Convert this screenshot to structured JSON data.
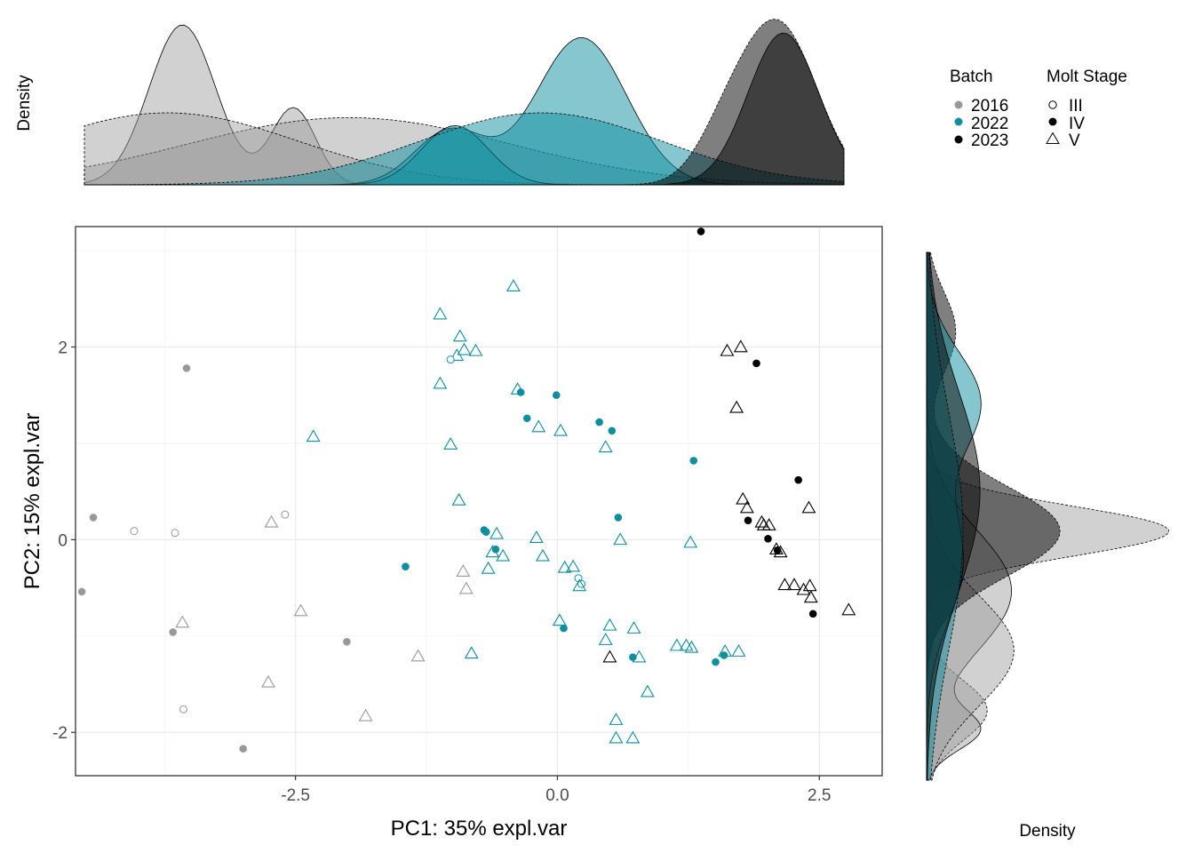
{
  "chart_data": {
    "type": "scatter",
    "xlabel": "PC1: 35% expl.var",
    "ylabel": "PC2: 15% expl.var",
    "top_density_label": "Density",
    "right_density_label": "Density",
    "xlim": [
      -4.6,
      3.1
    ],
    "ylim": [
      -2.45,
      3.25
    ],
    "xticks": [
      -2.5,
      0.0,
      2.5
    ],
    "xtick_labels": [
      "-2.5",
      "0.0",
      "2.5"
    ],
    "yticks": [
      -2,
      0,
      2
    ],
    "ytick_labels": [
      "-2",
      "0",
      "2"
    ],
    "grid": true,
    "legend": {
      "placement": "top-right",
      "color_title": "Batch",
      "shape_title": "Molt Stage",
      "batches": [
        {
          "name": "2016",
          "color": "#999999"
        },
        {
          "name": "2022",
          "color": "#0e8fa0"
        },
        {
          "name": "2023",
          "color": "#000000"
        }
      ],
      "stages": [
        {
          "name": "III",
          "shape": "open-circle"
        },
        {
          "name": "IV",
          "shape": "filled-circle"
        },
        {
          "name": "V",
          "shape": "open-triangle"
        }
      ]
    },
    "points": [
      {
        "x": -4.43,
        "y": 0.23,
        "batch": "2016",
        "stage": "IV"
      },
      {
        "x": -4.54,
        "y": -0.54,
        "batch": "2016",
        "stage": "IV"
      },
      {
        "x": -3.54,
        "y": 1.78,
        "batch": "2016",
        "stage": "IV"
      },
      {
        "x": -3.67,
        "y": -0.96,
        "batch": "2016",
        "stage": "IV"
      },
      {
        "x": -2.01,
        "y": -1.06,
        "batch": "2016",
        "stage": "IV"
      },
      {
        "x": -3.0,
        "y": -2.17,
        "batch": "2016",
        "stage": "IV"
      },
      {
        "x": -4.04,
        "y": 0.09,
        "batch": "2016",
        "stage": "III"
      },
      {
        "x": -3.65,
        "y": 0.07,
        "batch": "2016",
        "stage": "III"
      },
      {
        "x": -2.6,
        "y": 0.26,
        "batch": "2016",
        "stage": "III"
      },
      {
        "x": -3.57,
        "y": -1.76,
        "batch": "2016",
        "stage": "III"
      },
      {
        "x": -2.33,
        "y": 1.07,
        "batch": "2022",
        "stage": "V"
      },
      {
        "x": -2.73,
        "y": 0.18,
        "batch": "2016",
        "stage": "V"
      },
      {
        "x": -3.58,
        "y": -0.86,
        "batch": "2016",
        "stage": "V"
      },
      {
        "x": -2.45,
        "y": -0.74,
        "batch": "2016",
        "stage": "V"
      },
      {
        "x": -2.76,
        "y": -1.48,
        "batch": "2016",
        "stage": "V"
      },
      {
        "x": -1.83,
        "y": -1.83,
        "batch": "2016",
        "stage": "V"
      },
      {
        "x": -1.33,
        "y": -1.21,
        "batch": "2016",
        "stage": "V"
      },
      {
        "x": -0.9,
        "y": -0.33,
        "batch": "2016",
        "stage": "V"
      },
      {
        "x": -0.87,
        "y": -0.51,
        "batch": "2016",
        "stage": "V"
      },
      {
        "x": -0.42,
        "y": 2.63,
        "batch": "2022",
        "stage": "V"
      },
      {
        "x": -1.12,
        "y": 2.34,
        "batch": "2022",
        "stage": "V"
      },
      {
        "x": -0.93,
        "y": 2.11,
        "batch": "2022",
        "stage": "V"
      },
      {
        "x": -0.89,
        "y": 1.97,
        "batch": "2022",
        "stage": "V"
      },
      {
        "x": -0.78,
        "y": 1.96,
        "batch": "2022",
        "stage": "V"
      },
      {
        "x": -0.96,
        "y": 1.91,
        "batch": "2022",
        "stage": "V"
      },
      {
        "x": -1.02,
        "y": 1.87,
        "batch": "2022",
        "stage": "III"
      },
      {
        "x": -1.12,
        "y": 1.62,
        "batch": "2022",
        "stage": "V"
      },
      {
        "x": -0.38,
        "y": 1.56,
        "batch": "2022",
        "stage": "V"
      },
      {
        "x": -0.35,
        "y": 1.53,
        "batch": "2022",
        "stage": "IV"
      },
      {
        "x": -0.01,
        "y": 1.5,
        "batch": "2022",
        "stage": "IV"
      },
      {
        "x": -0.29,
        "y": 1.26,
        "batch": "2022",
        "stage": "IV"
      },
      {
        "x": -0.18,
        "y": 1.17,
        "batch": "2022",
        "stage": "V"
      },
      {
        "x": 0.03,
        "y": 1.13,
        "batch": "2022",
        "stage": "V"
      },
      {
        "x": 0.4,
        "y": 1.22,
        "batch": "2022",
        "stage": "IV"
      },
      {
        "x": 0.52,
        "y": 1.13,
        "batch": "2022",
        "stage": "IV"
      },
      {
        "x": -1.02,
        "y": 0.99,
        "batch": "2022",
        "stage": "V"
      },
      {
        "x": 0.46,
        "y": 0.96,
        "batch": "2022",
        "stage": "V"
      },
      {
        "x": 1.3,
        "y": 0.82,
        "batch": "2022",
        "stage": "IV"
      },
      {
        "x": -0.94,
        "y": 0.41,
        "batch": "2022",
        "stage": "V"
      },
      {
        "x": 0.58,
        "y": 0.23,
        "batch": "2022",
        "stage": "IV"
      },
      {
        "x": -0.7,
        "y": 0.1,
        "batch": "2022",
        "stage": "IV"
      },
      {
        "x": -0.68,
        "y": 0.08,
        "batch": "2022",
        "stage": "IV"
      },
      {
        "x": -0.58,
        "y": 0.06,
        "batch": "2022",
        "stage": "V"
      },
      {
        "x": -0.2,
        "y": 0.02,
        "batch": "2022",
        "stage": "V"
      },
      {
        "x": 0.6,
        "y": 0.0,
        "batch": "2022",
        "stage": "V"
      },
      {
        "x": 1.27,
        "y": -0.03,
        "batch": "2022",
        "stage": "V"
      },
      {
        "x": -0.59,
        "y": -0.1,
        "batch": "2022",
        "stage": "IV"
      },
      {
        "x": -0.62,
        "y": -0.13,
        "batch": "2022",
        "stage": "V"
      },
      {
        "x": -0.52,
        "y": -0.17,
        "batch": "2022",
        "stage": "V"
      },
      {
        "x": -0.14,
        "y": -0.17,
        "batch": "2022",
        "stage": "V"
      },
      {
        "x": -1.45,
        "y": -0.28,
        "batch": "2022",
        "stage": "IV"
      },
      {
        "x": -0.66,
        "y": -0.3,
        "batch": "2022",
        "stage": "V"
      },
      {
        "x": 0.07,
        "y": -0.29,
        "batch": "2022",
        "stage": "V"
      },
      {
        "x": 0.15,
        "y": -0.28,
        "batch": "2022",
        "stage": "V"
      },
      {
        "x": 0.2,
        "y": -0.4,
        "batch": "2022",
        "stage": "III"
      },
      {
        "x": 0.23,
        "y": -0.46,
        "batch": "2022",
        "stage": "III"
      },
      {
        "x": 0.21,
        "y": -0.48,
        "batch": "2022",
        "stage": "V"
      },
      {
        "x": 0.02,
        "y": -0.84,
        "batch": "2022",
        "stage": "V"
      },
      {
        "x": 0.06,
        "y": -0.92,
        "batch": "2022",
        "stage": "IV"
      },
      {
        "x": 0.5,
        "y": -0.89,
        "batch": "2022",
        "stage": "V"
      },
      {
        "x": 0.73,
        "y": -0.92,
        "batch": "2022",
        "stage": "V"
      },
      {
        "x": 0.46,
        "y": -1.04,
        "batch": "2022",
        "stage": "V"
      },
      {
        "x": 1.14,
        "y": -1.1,
        "batch": "2022",
        "stage": "V"
      },
      {
        "x": 1.23,
        "y": -1.1,
        "batch": "2022",
        "stage": "V"
      },
      {
        "x": 1.28,
        "y": -1.12,
        "batch": "2022",
        "stage": "V"
      },
      {
        "x": -0.82,
        "y": -1.18,
        "batch": "2022",
        "stage": "V"
      },
      {
        "x": 1.6,
        "y": -1.16,
        "batch": "2022",
        "stage": "V"
      },
      {
        "x": 1.73,
        "y": -1.16,
        "batch": "2022",
        "stage": "V"
      },
      {
        "x": 1.59,
        "y": -1.2,
        "batch": "2022",
        "stage": "IV"
      },
      {
        "x": 0.72,
        "y": -1.22,
        "batch": "2022",
        "stage": "IV"
      },
      {
        "x": 0.78,
        "y": -1.22,
        "batch": "2022",
        "stage": "V"
      },
      {
        "x": 1.51,
        "y": -1.27,
        "batch": "2022",
        "stage": "IV"
      },
      {
        "x": 0.86,
        "y": -1.58,
        "batch": "2022",
        "stage": "V"
      },
      {
        "x": 0.56,
        "y": -1.87,
        "batch": "2022",
        "stage": "V"
      },
      {
        "x": 0.56,
        "y": -2.06,
        "batch": "2022",
        "stage": "V"
      },
      {
        "x": 0.72,
        "y": -2.06,
        "batch": "2022",
        "stage": "V"
      },
      {
        "x": 1.37,
        "y": 3.2,
        "batch": "2023",
        "stage": "IV"
      },
      {
        "x": 1.62,
        "y": 1.96,
        "batch": "2023",
        "stage": "V"
      },
      {
        "x": 1.75,
        "y": 2.0,
        "batch": "2023",
        "stage": "V"
      },
      {
        "x": 1.9,
        "y": 1.83,
        "batch": "2023",
        "stage": "IV"
      },
      {
        "x": 1.71,
        "y": 1.37,
        "batch": "2023",
        "stage": "V"
      },
      {
        "x": 2.3,
        "y": 0.62,
        "batch": "2023",
        "stage": "IV"
      },
      {
        "x": 1.77,
        "y": 0.42,
        "batch": "2023",
        "stage": "V"
      },
      {
        "x": 1.81,
        "y": 0.33,
        "batch": "2023",
        "stage": "V"
      },
      {
        "x": 2.4,
        "y": 0.33,
        "batch": "2023",
        "stage": "V"
      },
      {
        "x": 1.82,
        "y": 0.2,
        "batch": "2023",
        "stage": "IV"
      },
      {
        "x": 1.95,
        "y": 0.18,
        "batch": "2023",
        "stage": "V"
      },
      {
        "x": 2.02,
        "y": 0.15,
        "batch": "2023",
        "stage": "V"
      },
      {
        "x": 1.97,
        "y": 0.15,
        "batch": "2023",
        "stage": "V"
      },
      {
        "x": 2.01,
        "y": 0.01,
        "batch": "2023",
        "stage": "IV"
      },
      {
        "x": 2.09,
        "y": -0.1,
        "batch": "2023",
        "stage": "V"
      },
      {
        "x": 2.13,
        "y": -0.13,
        "batch": "2023",
        "stage": "V"
      },
      {
        "x": 2.1,
        "y": -0.11,
        "batch": "2023",
        "stage": "IV"
      },
      {
        "x": 2.17,
        "y": -0.47,
        "batch": "2023",
        "stage": "V"
      },
      {
        "x": 2.26,
        "y": -0.47,
        "batch": "2023",
        "stage": "V"
      },
      {
        "x": 2.35,
        "y": -0.52,
        "batch": "2023",
        "stage": "V"
      },
      {
        "x": 2.41,
        "y": -0.48,
        "batch": "2023",
        "stage": "V"
      },
      {
        "x": 2.42,
        "y": -0.6,
        "batch": "2023",
        "stage": "V"
      },
      {
        "x": 2.44,
        "y": -0.77,
        "batch": "2023",
        "stage": "IV"
      },
      {
        "x": 2.78,
        "y": -0.73,
        "batch": "2023",
        "stage": "V"
      },
      {
        "x": 0.5,
        "y": -1.22,
        "batch": "2023",
        "stage": "V"
      }
    ],
    "top_density": [
      {
        "batch": "2016",
        "stage": "IV",
        "color": "#999999",
        "fill_opacity": 0.45,
        "dash": false,
        "peaks": [
          [
            -3.85,
            1.0,
            0.33
          ],
          [
            -2.75,
            0.48,
            0.22
          ]
        ],
        "range": [
          -4.82,
          2.7
        ]
      },
      {
        "batch": "2016",
        "stage": "V",
        "color": "#999999",
        "fill_opacity": 0.45,
        "dash": true,
        "peaks": [
          [
            -2.2,
            0.42,
            1.6
          ]
        ],
        "range": [
          -4.82,
          2.7
        ]
      },
      {
        "batch": "2016",
        "stage": "III",
        "color": "#999999",
        "fill_opacity": 0.45,
        "dash": true,
        "peaks": [
          [
            -4.0,
            0.45,
            1.3
          ]
        ],
        "range": [
          -4.82,
          2.7
        ]
      },
      {
        "batch": "2022",
        "stage": "IV",
        "color": "#0e8fa0",
        "fill_opacity": 0.5,
        "dash": false,
        "peaks": [
          [
            0.1,
            0.92,
            0.45
          ],
          [
            -1.2,
            0.34,
            0.35
          ]
        ],
        "range": [
          -4.82,
          2.7
        ]
      },
      {
        "batch": "2022",
        "stage": "III",
        "color": "#0e8fa0",
        "fill_opacity": 0.5,
        "dash": false,
        "peaks": [
          [
            -1.15,
            0.37,
            0.33
          ]
        ],
        "range": [
          -4.82,
          2.7
        ]
      },
      {
        "batch": "2022",
        "stage": "V",
        "color": "#0e8fa0",
        "fill_opacity": 0.5,
        "dash": true,
        "peaks": [
          [
            -0.3,
            0.45,
            1.2
          ]
        ],
        "range": [
          -4.82,
          2.7
        ]
      },
      {
        "batch": "2023",
        "stage": "V",
        "color": "#000000",
        "fill_opacity": 0.5,
        "dash": true,
        "peaks": [
          [
            2.05,
            1.0,
            0.38
          ],
          [
            1.5,
            0.22,
            0.28
          ]
        ],
        "range": [
          -4.82,
          2.7
        ]
      },
      {
        "batch": "2023",
        "stage": "IV",
        "color": "#000000",
        "fill_opacity": 0.5,
        "dash": false,
        "peaks": [
          [
            2.1,
            0.95,
            0.35
          ]
        ],
        "range": [
          -4.82,
          2.7
        ]
      }
    ],
    "right_density": [
      {
        "batch": "2016",
        "stage": "III",
        "color": "#999999",
        "fill_opacity": 0.45,
        "dash": true,
        "peaks": [
          [
            0.0,
            1.0,
            0.25
          ],
          [
            -1.8,
            0.25,
            0.3
          ]
        ],
        "range": [
          -2.5,
          2.8
        ]
      },
      {
        "batch": "2016",
        "stage": "IV",
        "color": "#999999",
        "fill_opacity": 0.45,
        "dash": false,
        "peaks": [
          [
            -0.6,
            0.35,
            0.6
          ],
          [
            -2.0,
            0.2,
            0.2
          ]
        ],
        "range": [
          -2.5,
          2.8
        ]
      },
      {
        "batch": "2016",
        "stage": "V",
        "color": "#999999",
        "fill_opacity": 0.45,
        "dash": true,
        "peaks": [
          [
            -1.2,
            0.36,
            0.55
          ]
        ],
        "range": [
          -2.5,
          2.8
        ]
      },
      {
        "batch": "2023",
        "stage": "V",
        "color": "#000000",
        "fill_opacity": 0.5,
        "dash": true,
        "peaks": [
          [
            0.0,
            0.55,
            0.45
          ],
          [
            2.0,
            0.12,
            0.4
          ]
        ],
        "range": [
          -2.5,
          2.8
        ]
      },
      {
        "batch": "2022",
        "stage": "IV",
        "color": "#0e8fa0",
        "fill_opacity": 0.5,
        "dash": false,
        "peaks": [
          [
            1.3,
            0.22,
            0.5
          ],
          [
            -0.3,
            0.15,
            0.6
          ]
        ],
        "range": [
          -2.5,
          2.8
        ]
      },
      {
        "batch": "2022",
        "stage": "V",
        "color": "#0e8fa0",
        "fill_opacity": 0.5,
        "dash": true,
        "peaks": [
          [
            0.0,
            0.15,
            1.2
          ]
        ],
        "range": [
          -2.5,
          2.8
        ]
      },
      {
        "batch": "2023",
        "stage": "IV",
        "color": "#000000",
        "fill_opacity": 0.5,
        "dash": false,
        "peaks": [
          [
            0.4,
            0.22,
            1.0
          ]
        ],
        "range": [
          -2.5,
          2.8
        ]
      }
    ]
  }
}
